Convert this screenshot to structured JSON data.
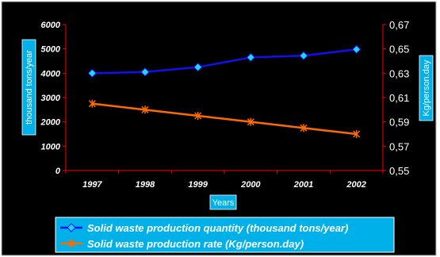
{
  "chart_data": {
    "type": "line",
    "categories": [
      "1997",
      "1998",
      "1999",
      "2000",
      "2001",
      "2002"
    ],
    "xlabel": "Years",
    "ylabel_left": "thousand tons/year",
    "ylabel_right": "Kg/person.day",
    "ylim_left": [
      0,
      6000
    ],
    "yticks_left": [
      "0",
      "1000",
      "2000",
      "3000",
      "4000",
      "5000",
      "6000"
    ],
    "ylim_right": [
      0.55,
      0.67
    ],
    "yticks_right": [
      "0,55",
      "0,57",
      "0,59",
      "0,61",
      "0,63",
      "0,65",
      "0,67"
    ],
    "grid": false,
    "legend_position": "bottom",
    "series": [
      {
        "name": "Solid waste production quantity (thousand tons/year)",
        "axis": "left",
        "color": "#1010f0",
        "marker": "diamond",
        "marker_color": "#20d8ff",
        "values": [
          4000,
          4050,
          4250,
          4650,
          4720,
          4980
        ]
      },
      {
        "name": "Solid waste production rate (Kg/person.day)",
        "axis": "right",
        "color": "#ff6a00",
        "marker": "asterisk",
        "marker_color": "#ff6a00",
        "values": [
          0.605,
          0.6,
          0.595,
          0.59,
          0.585,
          0.58
        ]
      }
    ],
    "colors": {
      "background": "#000000",
      "text": "#ffffff",
      "axis": "#ff0000",
      "axis_title_box": "#00b0e8"
    }
  }
}
